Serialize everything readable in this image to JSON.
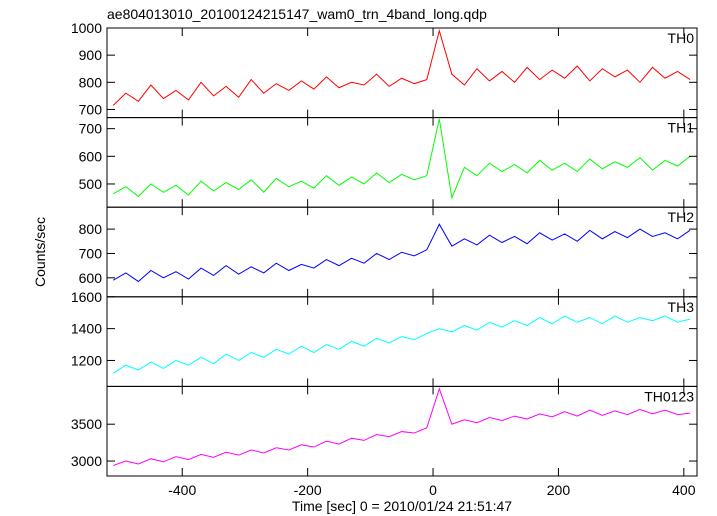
{
  "chart_data": {
    "type": "line",
    "title": "ae804013010_20100124215147_wam0_trn_4band_long.qdp",
    "ylabel": "Counts/sec",
    "xlabel": "Time [sec] 0 = 2010/01/24 21:51:47",
    "xlim": [
      -520,
      421
    ],
    "xticks": [
      -400,
      -200,
      0,
      200,
      400
    ],
    "x": [
      -510,
      -490,
      -470,
      -450,
      -430,
      -410,
      -390,
      -370,
      -350,
      -330,
      -310,
      -290,
      -270,
      -250,
      -230,
      -210,
      -190,
      -170,
      -150,
      -130,
      -110,
      -90,
      -70,
      -50,
      -30,
      -10,
      10,
      30,
      50,
      70,
      90,
      110,
      130,
      150,
      170,
      190,
      210,
      230,
      250,
      270,
      290,
      310,
      330,
      350,
      370,
      390,
      410
    ],
    "panels": [
      {
        "name": "TH0",
        "color": "#ff0000",
        "ylim": [
          670,
          1000
        ],
        "yticks": [
          700,
          800,
          900,
          1000
        ],
        "values": [
          715,
          760,
          730,
          790,
          740,
          770,
          735,
          800,
          750,
          785,
          745,
          810,
          760,
          795,
          770,
          805,
          775,
          820,
          780,
          800,
          790,
          830,
          785,
          815,
          795,
          810,
          990,
          830,
          790,
          850,
          805,
          840,
          800,
          855,
          810,
          845,
          815,
          860,
          805,
          850,
          820,
          845,
          800,
          855,
          815,
          840,
          810
        ]
      },
      {
        "name": "TH1",
        "color": "#00ff00",
        "ylim": [
          416,
          740
        ],
        "yticks": [
          500,
          600,
          700
        ],
        "values": [
          465,
          490,
          455,
          500,
          470,
          495,
          460,
          510,
          475,
          505,
          480,
          515,
          470,
          520,
          490,
          510,
          485,
          530,
          495,
          525,
          500,
          540,
          505,
          535,
          515,
          530,
          735,
          450,
          560,
          530,
          575,
          545,
          570,
          540,
          585,
          550,
          575,
          545,
          590,
          555,
          580,
          560,
          595,
          550,
          585,
          565,
          600
        ]
      },
      {
        "name": "TH2",
        "color": "#0000ff",
        "ylim": [
          522,
          890
        ],
        "yticks": [
          600,
          700,
          800
        ],
        "values": [
          590,
          620,
          585,
          630,
          600,
          625,
          595,
          640,
          610,
          650,
          615,
          645,
          620,
          660,
          630,
          655,
          640,
          675,
          650,
          680,
          660,
          700,
          675,
          705,
          690,
          715,
          820,
          730,
          760,
          735,
          775,
          745,
          770,
          740,
          785,
          755,
          780,
          750,
          795,
          760,
          790,
          765,
          800,
          770,
          785,
          760,
          795
        ]
      },
      {
        "name": "TH3",
        "color": "#00ffff",
        "ylim": [
          1037,
          1600
        ],
        "yticks": [
          1200,
          1400,
          1600
        ],
        "values": [
          1120,
          1170,
          1140,
          1190,
          1150,
          1200,
          1170,
          1220,
          1180,
          1240,
          1200,
          1250,
          1220,
          1270,
          1240,
          1290,
          1250,
          1300,
          1270,
          1320,
          1290,
          1340,
          1310,
          1350,
          1330,
          1370,
          1400,
          1380,
          1420,
          1390,
          1440,
          1410,
          1450,
          1420,
          1470,
          1430,
          1480,
          1440,
          1470,
          1430,
          1480,
          1440,
          1470,
          1450,
          1480,
          1440,
          1460
        ]
      },
      {
        "name": "TH0123",
        "color": "#ff00ff",
        "ylim": [
          2797,
          4013
        ],
        "yticks": [
          3000,
          3500
        ],
        "values": [
          2940,
          3000,
          2960,
          3030,
          2990,
          3060,
          3020,
          3090,
          3050,
          3120,
          3080,
          3150,
          3110,
          3180,
          3150,
          3220,
          3190,
          3270,
          3230,
          3310,
          3280,
          3360,
          3330,
          3400,
          3380,
          3450,
          3980,
          3500,
          3560,
          3520,
          3590,
          3550,
          3610,
          3570,
          3640,
          3600,
          3670,
          3610,
          3690,
          3620,
          3680,
          3630,
          3700,
          3640,
          3690,
          3630,
          3650
        ]
      }
    ]
  }
}
